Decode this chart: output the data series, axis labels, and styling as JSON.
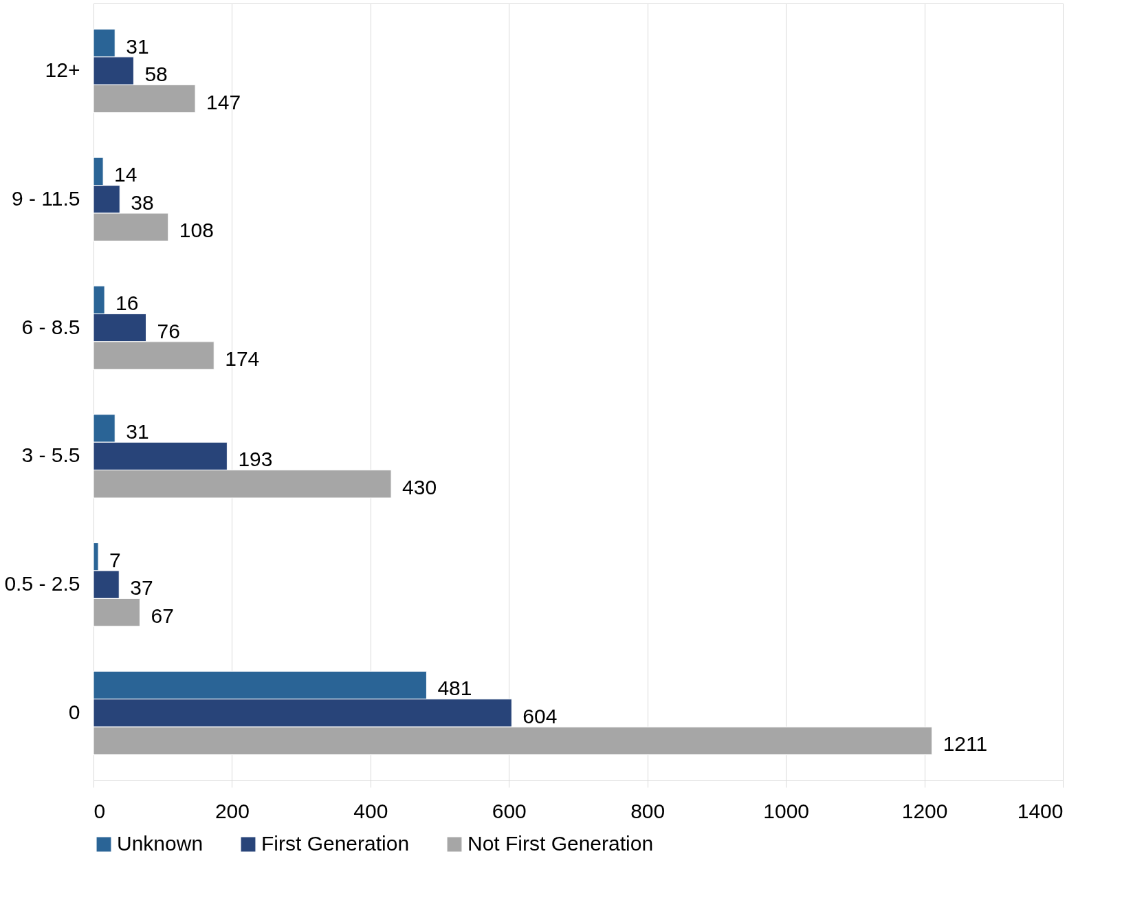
{
  "chart_data": {
    "type": "bar",
    "orientation": "horizontal",
    "categories": [
      "12+",
      "9 - 11.5",
      "6 - 8.5",
      "3 - 5.5",
      "0.5 - 2.5",
      "0"
    ],
    "series": [
      {
        "name": "Unknown",
        "color": "#2a6496",
        "values": [
          31,
          14,
          16,
          31,
          7,
          481
        ]
      },
      {
        "name": "First Generation",
        "color": "#284479",
        "values": [
          58,
          38,
          76,
          193,
          37,
          604
        ]
      },
      {
        "name": "Not First Generation",
        "color": "#a6a6a6",
        "values": [
          147,
          108,
          174,
          430,
          67,
          1211
        ]
      }
    ],
    "xlim": [
      0,
      1400
    ],
    "xticks": [
      0,
      200,
      400,
      600,
      800,
      1000,
      1200,
      1400
    ],
    "grid": "x",
    "legend": "bottom",
    "data_labels": true
  }
}
